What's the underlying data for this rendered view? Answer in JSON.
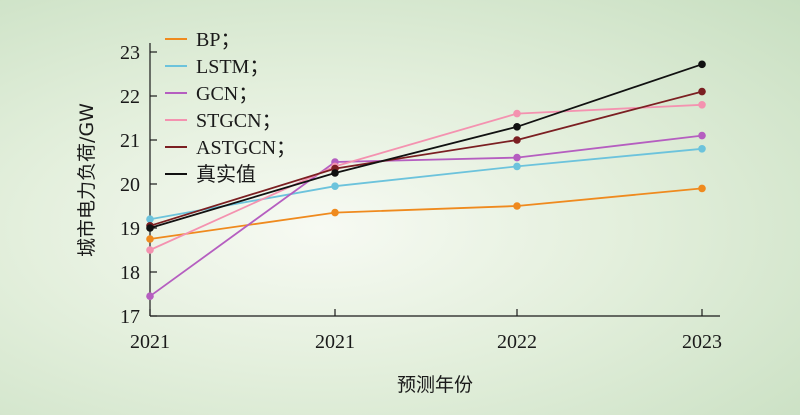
{
  "chart_data": {
    "type": "line",
    "categories": [
      "2021",
      "2021",
      "2022",
      "2023"
    ],
    "xlabel": "预测年份",
    "ylabel": "城市电力负荷/GW",
    "ylim": [
      17,
      23
    ],
    "yticks": [
      17,
      18,
      19,
      20,
      21,
      22,
      23
    ],
    "grid": false,
    "legend_position": "top-left",
    "series": [
      {
        "name": "BP；",
        "color": "#ef8a1e",
        "values": [
          18.75,
          19.35,
          19.5,
          19.9
        ]
      },
      {
        "name": "LSTM；",
        "color": "#6cc3dc",
        "values": [
          19.2,
          19.95,
          20.4,
          20.8
        ]
      },
      {
        "name": "GCN；",
        "color": "#b55ec0",
        "values": [
          17.45,
          20.5,
          20.6,
          21.1
        ]
      },
      {
        "name": "STGCN；",
        "color": "#f492b0",
        "values": [
          18.5,
          20.4,
          21.6,
          21.8
        ]
      },
      {
        "name": "ASTGCN；",
        "color": "#7b1f22",
        "values": [
          19.05,
          20.35,
          21.0,
          22.1
        ]
      },
      {
        "name": "真实值",
        "color": "#111111",
        "values": [
          19.0,
          20.25,
          21.3,
          22.72
        ]
      }
    ]
  }
}
